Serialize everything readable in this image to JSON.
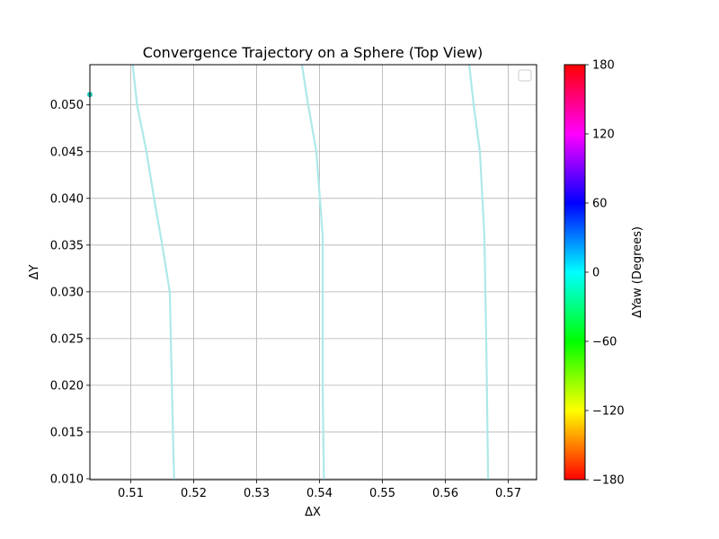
{
  "chart_data": {
    "type": "line",
    "title": "Convergence Trajectory on a Sphere (Top View)",
    "xlabel": "ΔX",
    "ylabel": "ΔY",
    "xlim": [
      0.5035,
      0.5745
    ],
    "ylim": [
      0.0099,
      0.0543
    ],
    "x_ticks": [
      0.51,
      0.52,
      0.53,
      0.54,
      0.55,
      0.56,
      0.57
    ],
    "x_tick_labels": [
      "0.51",
      "0.52",
      "0.53",
      "0.54",
      "0.55",
      "0.56",
      "0.57"
    ],
    "y_ticks": [
      0.01,
      0.015,
      0.02,
      0.025,
      0.03,
      0.035,
      0.04,
      0.045,
      0.05
    ],
    "y_tick_labels": [
      "0.010",
      "0.015",
      "0.020",
      "0.025",
      "0.030",
      "0.035",
      "0.040",
      "0.045",
      "0.050"
    ],
    "grid": true,
    "legend_placement": "upper-right",
    "line_color": "#aee8e8",
    "series": [
      {
        "x": [
          0.5103,
          0.511,
          0.5125,
          0.5137,
          0.515,
          0.5162,
          0.5167,
          0.5169
        ],
        "y": [
          0.0543,
          0.05,
          0.045,
          0.04,
          0.035,
          0.03,
          0.015,
          0.0099
        ]
      },
      {
        "x": [
          0.5372,
          0.5382,
          0.5395,
          0.5405,
          0.5405,
          0.5407
        ],
        "y": [
          0.0543,
          0.05,
          0.045,
          0.036,
          0.02,
          0.0099
        ]
      },
      {
        "x": [
          0.5638,
          0.5645,
          0.5655,
          0.5662,
          0.5665,
          0.5668
        ],
        "y": [
          0.0543,
          0.05,
          0.045,
          0.036,
          0.025,
          0.0099
        ]
      }
    ],
    "points": [
      {
        "x": 0.5035,
        "y": 0.0511,
        "color": "#22c7b8"
      }
    ],
    "colorbar": {
      "label": "ΔYaw (Degrees)",
      "range": [
        -180,
        180
      ],
      "ticks": [
        180,
        120,
        60,
        0,
        -60,
        -120,
        -180
      ],
      "tick_labels": [
        "180",
        "120",
        "60",
        "0",
        "−60",
        "−120",
        "−180"
      ],
      "colormap": "hsv"
    }
  }
}
